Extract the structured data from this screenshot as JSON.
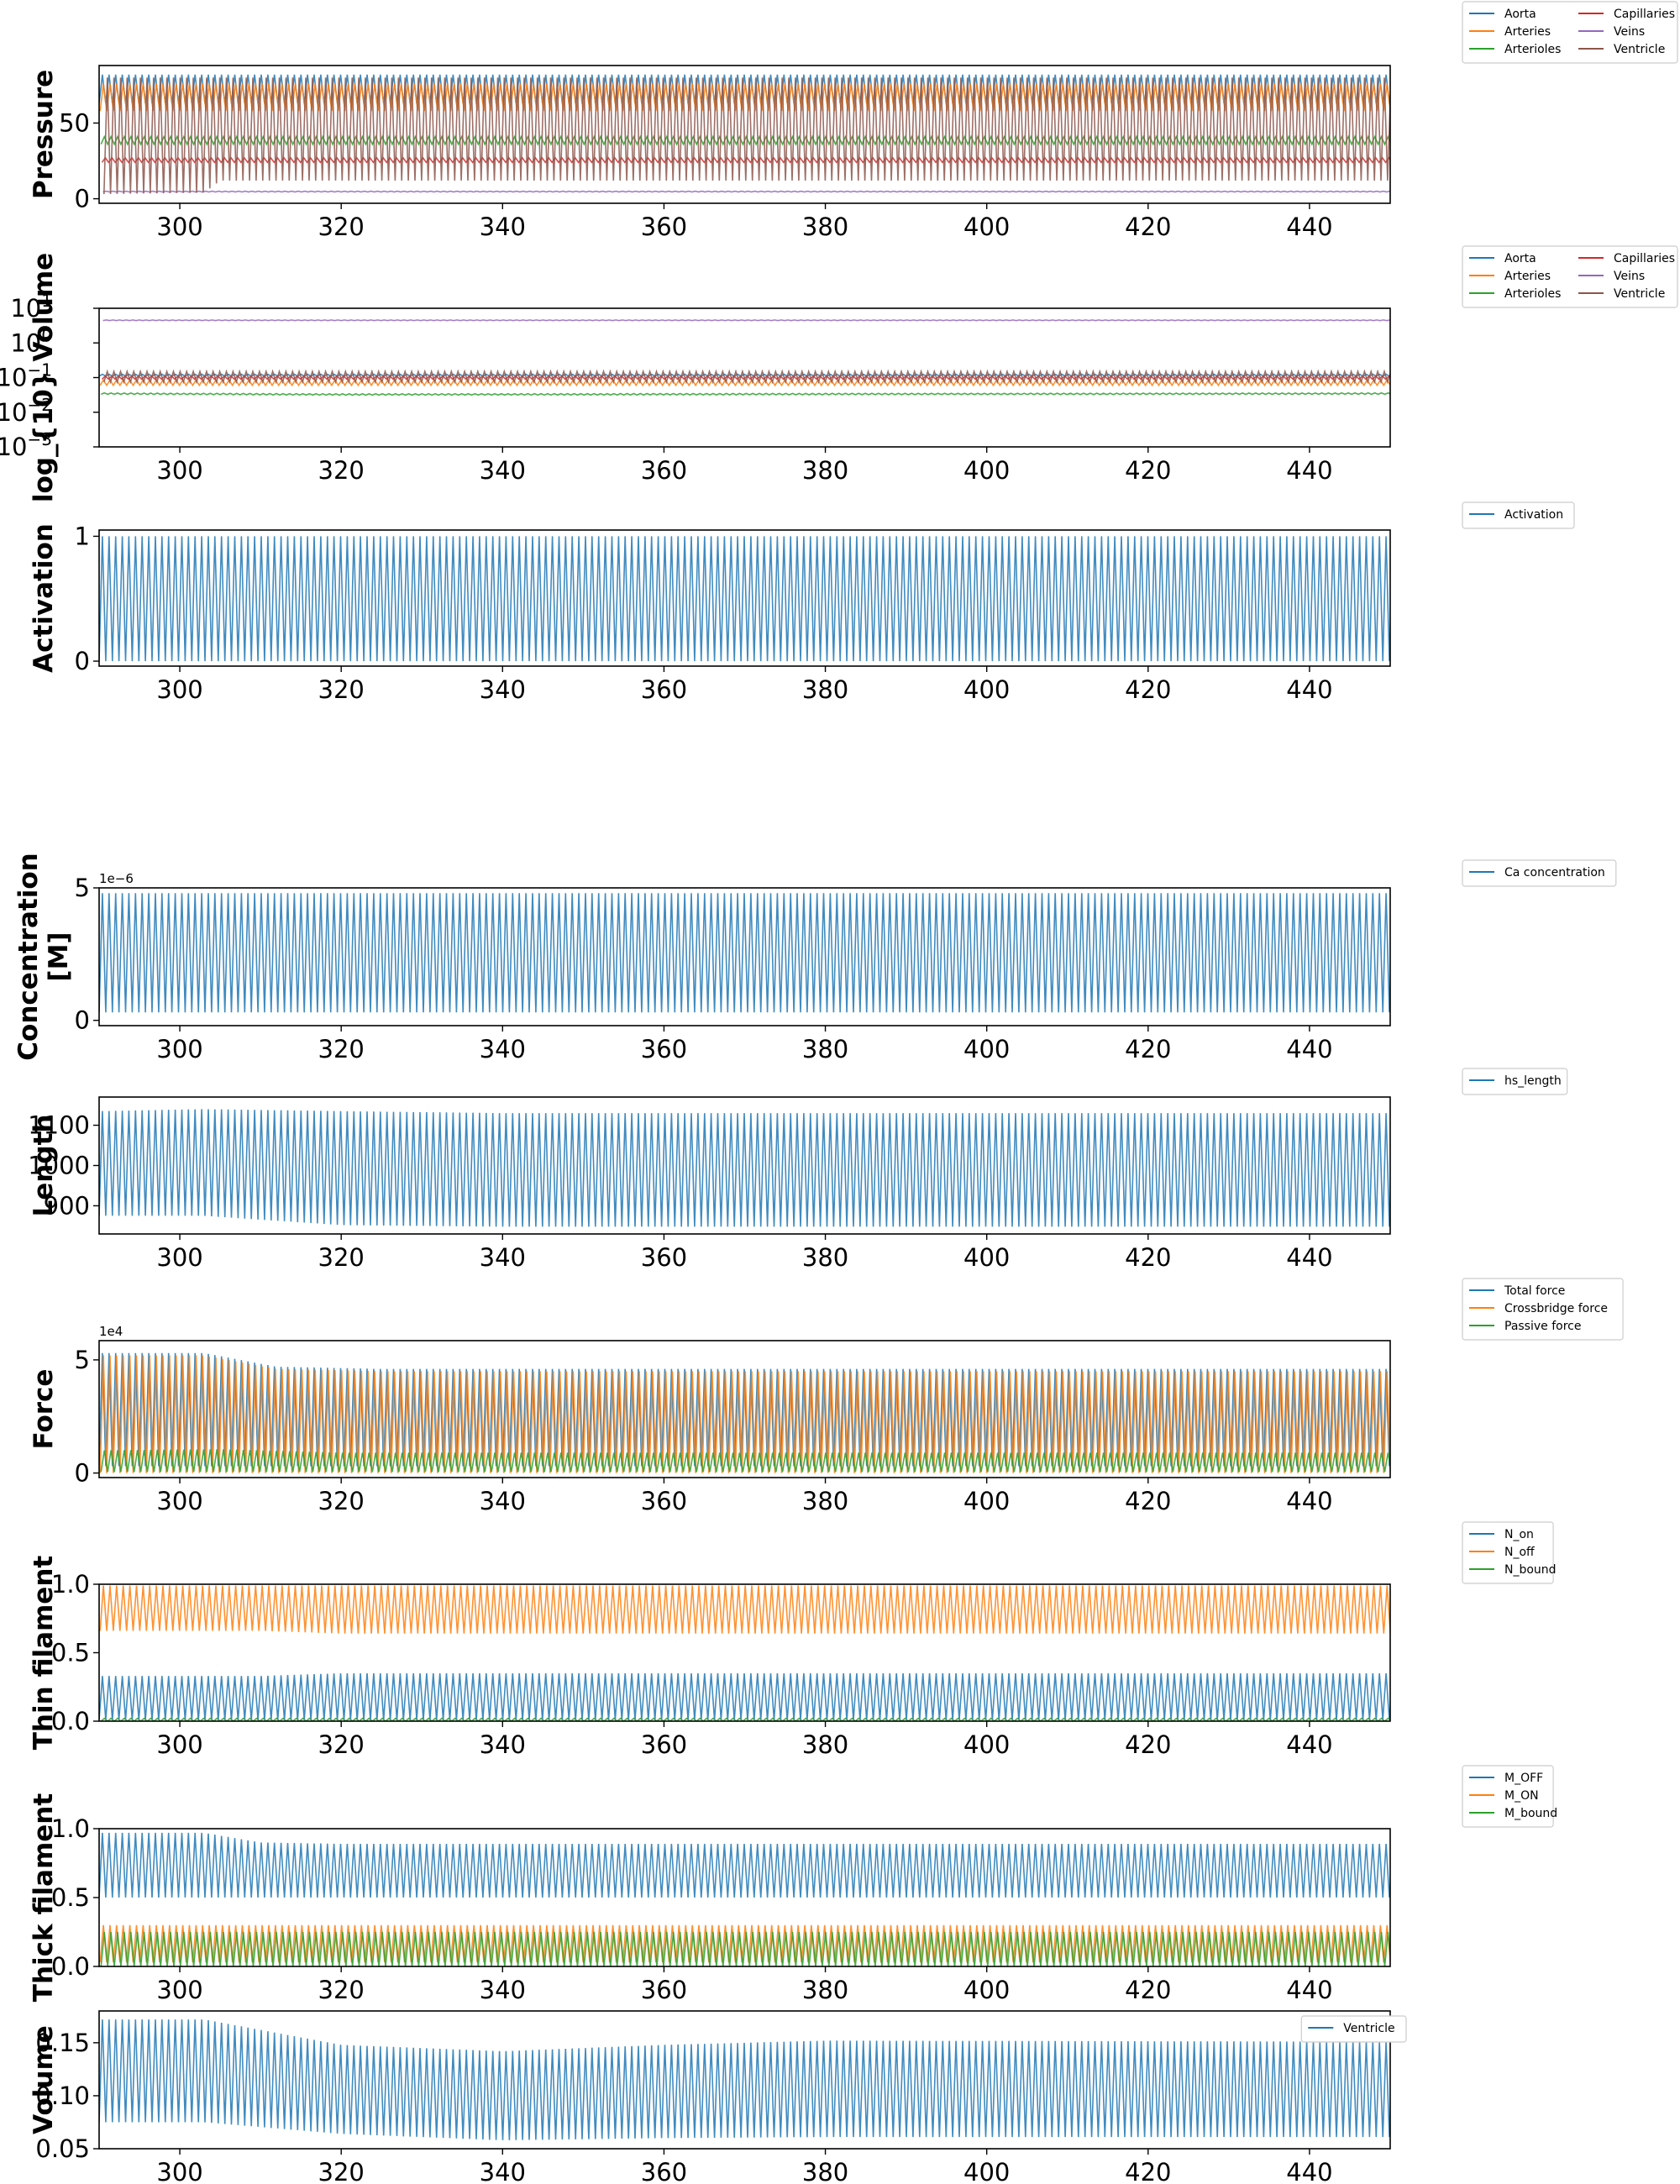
{
  "chart_data": [
    {
      "type": "line",
      "ylabel": "Pressure",
      "xlim": [
        290,
        450
      ],
      "ylim": [
        -3,
        88
      ],
      "xticks": [
        300,
        320,
        340,
        360,
        380,
        400,
        420,
        440
      ],
      "yticks": [
        {
          "v": 0,
          "label": "0"
        },
        {
          "v": 50,
          "label": "50"
        }
      ],
      "legend": {
        "placement": "outside-top-right",
        "ncol": 2
      },
      "series": [
        {
          "name": "Aorta",
          "color": "#1f77b4",
          "min": [
            [
              290,
              63
            ],
            [
              450,
              63
            ]
          ],
          "max": [
            [
              290,
              82
            ],
            [
              450,
              82
            ]
          ]
        },
        {
          "name": "Arteries",
          "color": "#ff7f0e",
          "min": [
            [
              290,
              58
            ],
            [
              450,
              58
            ]
          ],
          "max": [
            [
              290,
              76
            ],
            [
              450,
              76
            ]
          ]
        },
        {
          "name": "Arterioles",
          "color": "#2ca02c",
          "min": [
            [
              290,
              36
            ],
            [
              450,
              36
            ]
          ],
          "max": [
            [
              290,
              41
            ],
            [
              450,
              41
            ]
          ]
        },
        {
          "name": "Capillaries",
          "color": "#d62728",
          "min": [
            [
              290,
              24
            ],
            [
              450,
              24
            ]
          ],
          "max": [
            [
              290,
              27
            ],
            [
              450,
              27
            ]
          ]
        },
        {
          "name": "Veins",
          "color": "#9467bd",
          "min": [
            [
              290,
              4.5
            ],
            [
              450,
              4.5
            ]
          ],
          "max": [
            [
              290,
              5
            ],
            [
              450,
              5
            ]
          ]
        },
        {
          "name": "Ventricle",
          "color": "#8c564b",
          "min": [
            [
              290,
              3
            ],
            [
              303,
              4
            ],
            [
              305,
              12
            ],
            [
              450,
              12
            ]
          ],
          "max": [
            [
              290,
              80
            ],
            [
              450,
              80
            ]
          ]
        }
      ]
    },
    {
      "type": "line",
      "yscale": "log",
      "ylabel": "log_{10} Volume",
      "xlim": [
        290,
        450
      ],
      "ylim": [
        0.001,
        10
      ],
      "xticks": [
        300,
        320,
        340,
        360,
        380,
        400,
        420,
        440
      ],
      "yticks": [
        {
          "v": 10,
          "label": "10",
          "exp": "1"
        },
        {
          "v": 1,
          "label": "10",
          "exp": "0"
        },
        {
          "v": 0.1,
          "label": "10",
          "exp": "−1"
        },
        {
          "v": 0.01,
          "label": "10",
          "exp": "−2"
        },
        {
          "v": 0.001,
          "label": "10",
          "exp": "−3"
        }
      ],
      "legend": {
        "placement": "outside-top-right",
        "ncol": 2
      },
      "series": [
        {
          "name": "Aorta",
          "color": "#1f77b4",
          "min": [
            [
              290,
              0.11
            ],
            [
              450,
              0.11
            ]
          ],
          "max": [
            [
              290,
              0.125
            ],
            [
              450,
              0.125
            ]
          ]
        },
        {
          "name": "Arteries",
          "color": "#ff7f0e",
          "min": [
            [
              290,
              0.06
            ],
            [
              450,
              0.06
            ]
          ],
          "max": [
            [
              290,
              0.085
            ],
            [
              450,
              0.085
            ]
          ]
        },
        {
          "name": "Arterioles",
          "color": "#2ca02c",
          "min": [
            [
              290,
              0.033
            ],
            [
              320,
              0.031
            ],
            [
              450,
              0.033
            ]
          ],
          "max": [
            [
              290,
              0.036
            ],
            [
              320,
              0.034
            ],
            [
              450,
              0.036
            ]
          ]
        },
        {
          "name": "Capillaries",
          "color": "#d62728",
          "min": [
            [
              290,
              0.09
            ],
            [
              450,
              0.09
            ]
          ],
          "max": [
            [
              290,
              0.11
            ],
            [
              450,
              0.11
            ]
          ]
        },
        {
          "name": "Veins",
          "color": "#9467bd",
          "min": [
            [
              290,
              4.4
            ],
            [
              450,
              4.4
            ]
          ],
          "max": [
            [
              290,
              4.6
            ],
            [
              450,
              4.6
            ]
          ]
        },
        {
          "name": "Ventricle",
          "color": "#8c564b",
          "min": [
            [
              290,
              0.075
            ],
            [
              450,
              0.075
            ]
          ],
          "max": [
            [
              290,
              0.15
            ],
            [
              450,
              0.15
            ]
          ]
        }
      ]
    },
    {
      "type": "line",
      "ylabel": "Activation",
      "xlim": [
        290,
        450
      ],
      "ylim": [
        -0.04,
        1.05
      ],
      "xticks": [
        300,
        320,
        340,
        360,
        380,
        400,
        420,
        440
      ],
      "yticks": [
        {
          "v": 0,
          "label": "0"
        },
        {
          "v": 1,
          "label": "1"
        }
      ],
      "legend": {
        "placement": "outside-top-right",
        "ncol": 1
      },
      "series": [
        {
          "name": "Activation",
          "color": "#1f77b4",
          "min": [
            [
              290,
              0
            ],
            [
              450,
              0
            ]
          ],
          "max": [
            [
              290,
              1
            ],
            [
              450,
              1
            ]
          ]
        }
      ]
    },
    {
      "type": "line",
      "ylabel": "Concentration\n[M]",
      "offset_text": "1e−6",
      "xlim": [
        290,
        450
      ],
      "ylim": [
        -0.2,
        5.0
      ],
      "xticks": [
        300,
        320,
        340,
        360,
        380,
        400,
        420,
        440
      ],
      "yticks": [
        {
          "v": 0,
          "label": "0"
        },
        {
          "v": 5,
          "label": "5"
        }
      ],
      "legend": {
        "placement": "outside-top-right",
        "ncol": 1
      },
      "series": [
        {
          "name": "Ca concentration",
          "color": "#1f77b4",
          "min": [
            [
              290,
              0.3
            ],
            [
              450,
              0.3
            ]
          ],
          "max": [
            [
              290,
              4.8
            ],
            [
              450,
              4.8
            ]
          ]
        }
      ]
    },
    {
      "type": "line",
      "ylabel": "Length",
      "xlim": [
        290,
        450
      ],
      "ylim": [
        830,
        1170
      ],
      "xticks": [
        300,
        320,
        340,
        360,
        380,
        400,
        420,
        440
      ],
      "yticks": [
        {
          "v": 900,
          "label": "900"
        },
        {
          "v": 1000,
          "label": "1000"
        },
        {
          "v": 1100,
          "label": "1100"
        }
      ],
      "legend": {
        "placement": "outside-top-right",
        "ncol": 1
      },
      "series": [
        {
          "name": "hs_length",
          "color": "#1f77b4",
          "min": [
            [
              290,
              875
            ],
            [
              303,
              875
            ],
            [
              320,
              852
            ],
            [
              340,
              848
            ],
            [
              450,
              848
            ]
          ],
          "max": [
            [
              290,
              1135
            ],
            [
              303,
              1140
            ],
            [
              320,
              1135
            ],
            [
              340,
              1130
            ],
            [
              450,
              1130
            ]
          ]
        }
      ]
    },
    {
      "type": "line",
      "ylabel": "Force",
      "offset_text": "1e4",
      "xlim": [
        290,
        450
      ],
      "ylim": [
        -0.2,
        5.85
      ],
      "xticks": [
        300,
        320,
        340,
        360,
        380,
        400,
        420,
        440
      ],
      "yticks": [
        {
          "v": 0,
          "label": "0"
        },
        {
          "v": 5,
          "label": "5"
        }
      ],
      "legend": {
        "placement": "outside-top-right",
        "ncol": 1
      },
      "series": [
        {
          "name": "Total force",
          "color": "#1f77b4",
          "min": [
            [
              290,
              0.3
            ],
            [
              450,
              0.3
            ]
          ],
          "max": [
            [
              290,
              5.3
            ],
            [
              303,
              5.3
            ],
            [
              312,
              4.7
            ],
            [
              325,
              4.6
            ],
            [
              450,
              4.6
            ]
          ]
        },
        {
          "name": "Crossbridge force",
          "color": "#ff7f0e",
          "min": [
            [
              290,
              0
            ],
            [
              450,
              0
            ]
          ],
          "max": [
            [
              290,
              5.2
            ],
            [
              303,
              5.2
            ],
            [
              312,
              4.6
            ],
            [
              325,
              4.5
            ],
            [
              450,
              4.5
            ]
          ]
        },
        {
          "name": "Passive force",
          "color": "#2ca02c",
          "min": [
            [
              290,
              0.05
            ],
            [
              450,
              0.05
            ]
          ],
          "max": [
            [
              290,
              1.0
            ],
            [
              305,
              1.05
            ],
            [
              320,
              0.9
            ],
            [
              450,
              0.9
            ]
          ]
        }
      ]
    },
    {
      "type": "line",
      "ylabel": "Thin filament",
      "xlim": [
        290,
        450
      ],
      "ylim": [
        0,
        1.0
      ],
      "xticks": [
        300,
        320,
        340,
        360,
        380,
        400,
        420,
        440
      ],
      "yticks": [
        {
          "v": 0,
          "label": "0.0"
        },
        {
          "v": 0.5,
          "label": "0.5"
        },
        {
          "v": 1,
          "label": "1.0"
        }
      ],
      "legend": {
        "placement": "outside-top-right",
        "ncol": 1
      },
      "series": [
        {
          "name": "N_on",
          "color": "#1f77b4",
          "min": [
            [
              290,
              0.01
            ],
            [
              450,
              0.01
            ]
          ],
          "max": [
            [
              290,
              0.33
            ],
            [
              310,
              0.33
            ],
            [
              320,
              0.35
            ],
            [
              450,
              0.35
            ]
          ]
        },
        {
          "name": "N_off",
          "color": "#ff7f0e",
          "min": [
            [
              290,
              0.66
            ],
            [
              310,
              0.66
            ],
            [
              320,
              0.64
            ],
            [
              450,
              0.64
            ]
          ],
          "max": [
            [
              290,
              0.99
            ],
            [
              450,
              0.99
            ]
          ]
        },
        {
          "name": "N_bound",
          "color": "#2ca02c",
          "min": [
            [
              290,
              0.0
            ],
            [
              450,
              0.0
            ]
          ],
          "max": [
            [
              290,
              0.02
            ],
            [
              450,
              0.02
            ]
          ]
        }
      ]
    },
    {
      "type": "line",
      "ylabel": "Thick filament",
      "xlim": [
        290,
        450
      ],
      "ylim": [
        0,
        1.0
      ],
      "xticks": [
        300,
        320,
        340,
        360,
        380,
        400,
        420,
        440
      ],
      "yticks": [
        {
          "v": 0,
          "label": "0.0"
        },
        {
          "v": 0.5,
          "label": "0.5"
        },
        {
          "v": 1,
          "label": "1.0"
        }
      ],
      "legend": {
        "placement": "outside-top-right",
        "ncol": 1
      },
      "series": [
        {
          "name": "M_OFF",
          "color": "#1f77b4",
          "min": [
            [
              290,
              0.5
            ],
            [
              450,
              0.5
            ]
          ],
          "max": [
            [
              290,
              0.97
            ],
            [
              303,
              0.97
            ],
            [
              310,
              0.9
            ],
            [
              320,
              0.89
            ],
            [
              450,
              0.89
            ]
          ]
        },
        {
          "name": "M_ON",
          "color": "#ff7f0e",
          "min": [
            [
              290,
              0.03
            ],
            [
              450,
              0.03
            ]
          ],
          "max": [
            [
              290,
              0.3
            ],
            [
              450,
              0.3
            ]
          ]
        },
        {
          "name": "M_bound",
          "color": "#2ca02c",
          "min": [
            [
              290,
              0.0
            ],
            [
              450,
              0.0
            ]
          ],
          "max": [
            [
              290,
              0.25
            ],
            [
              450,
              0.25
            ]
          ]
        }
      ]
    },
    {
      "type": "line",
      "ylabel": "Volume",
      "xlim": [
        290,
        450
      ],
      "ylim": [
        0.05,
        0.18
      ],
      "xticks": [
        300,
        320,
        340,
        360,
        380,
        400,
        420,
        440
      ],
      "yticks": [
        {
          "v": 0.05,
          "label": "0.05"
        },
        {
          "v": 0.1,
          "label": "0.10"
        },
        {
          "v": 0.15,
          "label": "0.15"
        }
      ],
      "legend": {
        "placement": "inside-top-right",
        "ncol": 1
      },
      "series": [
        {
          "name": "Ventricle",
          "color": "#1f77b4",
          "min": [
            [
              290,
              0.075
            ],
            [
              303,
              0.075
            ],
            [
              320,
              0.064
            ],
            [
              340,
              0.058
            ],
            [
              360,
              0.06
            ],
            [
              380,
              0.061
            ],
            [
              450,
              0.061
            ]
          ],
          "max": [
            [
              290,
              0.172
            ],
            [
              303,
              0.172
            ],
            [
              320,
              0.148
            ],
            [
              340,
              0.142
            ],
            [
              360,
              0.148
            ],
            [
              380,
              0.152
            ],
            [
              450,
              0.151
            ]
          ]
        }
      ]
    }
  ]
}
